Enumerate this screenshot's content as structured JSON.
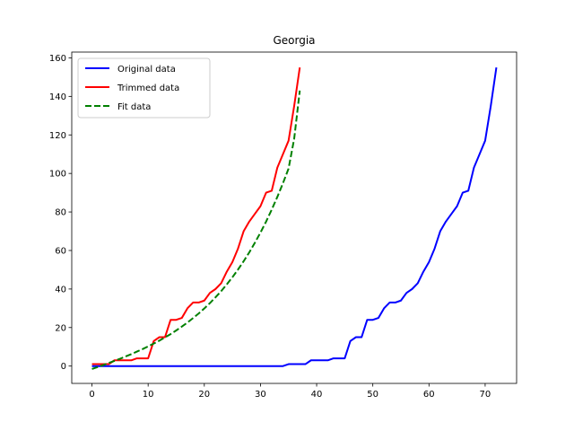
{
  "chart_data": {
    "type": "line",
    "title": "Georgia",
    "xlabel": "",
    "ylabel": "",
    "xlim": [
      -3.6,
      75.6
    ],
    "ylim": [
      -9,
      163
    ],
    "xticks": [
      0,
      10,
      20,
      30,
      40,
      50,
      60,
      70
    ],
    "yticks": [
      0,
      20,
      40,
      60,
      80,
      100,
      120,
      140,
      160
    ],
    "grid": false,
    "legend_position": "top-left",
    "series": [
      {
        "name": "Original data",
        "color": "#0000ff",
        "style": "solid",
        "x": [
          0,
          1,
          2,
          3,
          4,
          5,
          6,
          7,
          8,
          9,
          10,
          11,
          12,
          13,
          14,
          15,
          16,
          17,
          18,
          19,
          20,
          21,
          22,
          23,
          24,
          25,
          26,
          27,
          28,
          29,
          30,
          31,
          32,
          33,
          34,
          35,
          36,
          37,
          38,
          39,
          40,
          41,
          42,
          43,
          44,
          45,
          46,
          47,
          48,
          49,
          50,
          51,
          52,
          53,
          54,
          55,
          56,
          57,
          58,
          59,
          60,
          61,
          62,
          63,
          64,
          65,
          66,
          67,
          68,
          69,
          70,
          71,
          72
        ],
        "y": [
          0,
          0,
          0,
          0,
          0,
          0,
          0,
          0,
          0,
          0,
          0,
          0,
          0,
          0,
          0,
          0,
          0,
          0,
          0,
          0,
          0,
          0,
          0,
          0,
          0,
          0,
          0,
          0,
          0,
          0,
          0,
          0,
          0,
          0,
          0,
          1,
          1,
          1,
          1,
          3,
          3,
          3,
          3,
          4,
          4,
          4,
          13,
          15,
          15,
          24,
          24,
          25,
          30,
          33,
          33,
          34,
          38,
          40,
          43,
          49,
          54,
          61,
          70,
          75,
          79,
          83,
          90,
          91,
          103,
          110,
          117,
          135,
          155
        ]
      },
      {
        "name": "Trimmed data",
        "color": "#ff0000",
        "style": "solid",
        "x": [
          0,
          1,
          2,
          3,
          4,
          5,
          6,
          7,
          8,
          9,
          10,
          11,
          12,
          13,
          14,
          15,
          16,
          17,
          18,
          19,
          20,
          21,
          22,
          23,
          24,
          25,
          26,
          27,
          28,
          29,
          30,
          31,
          32,
          33,
          34,
          35,
          36,
          37
        ],
        "y": [
          1,
          1,
          1,
          1,
          3,
          3,
          3,
          3,
          4,
          4,
          4,
          13,
          15,
          15,
          24,
          24,
          25,
          30,
          33,
          33,
          34,
          38,
          40,
          43,
          49,
          54,
          61,
          70,
          75,
          79,
          83,
          90,
          91,
          103,
          110,
          117,
          135,
          155
        ]
      },
      {
        "name": "Fit data",
        "color": "#008000",
        "style": "dashed",
        "x": [
          0,
          1,
          2,
          3,
          4,
          5,
          6,
          7,
          8,
          9,
          10,
          11,
          12,
          13,
          14,
          15,
          16,
          17,
          18,
          19,
          20,
          21,
          22,
          23,
          24,
          25,
          26,
          27,
          28,
          29,
          30,
          31,
          32,
          33,
          34,
          35,
          36,
          37
        ],
        "y": [
          -1.5,
          -0.5,
          0.5,
          1.6,
          2.7,
          3.8,
          5.0,
          6.2,
          7.5,
          8.8,
          10.2,
          11.7,
          13.2,
          14.9,
          16.6,
          18.5,
          20.5,
          22.6,
          24.9,
          27.3,
          29.9,
          32.7,
          35.7,
          38.9,
          42.4,
          46.1,
          50.1,
          54.4,
          59.0,
          64.0,
          69.3,
          75.0,
          81.2,
          87.8,
          94.9,
          102.5,
          118.0,
          143.0
        ]
      }
    ]
  }
}
